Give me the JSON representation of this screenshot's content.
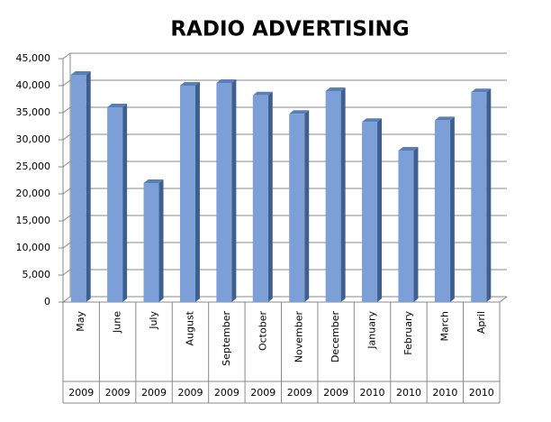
{
  "chart_data": {
    "type": "bar",
    "title": "RADIO ADVERTISING",
    "categories": [
      "May",
      "June",
      "July",
      "August",
      "September",
      "October",
      "November",
      "December",
      "January",
      "February",
      "March",
      "April"
    ],
    "category_groups": [
      "2009",
      "2009",
      "2009",
      "2009",
      "2009",
      "2009",
      "2009",
      "2009",
      "2010",
      "2010",
      "2010",
      "2010"
    ],
    "values": [
      42000,
      36000,
      22000,
      40000,
      40500,
      38200,
      34800,
      39000,
      33300,
      28000,
      33600,
      38800
    ],
    "color": "#7b9fd6",
    "ylim": [
      0,
      45000
    ],
    "yticks": [
      0,
      {
        "value": 5000,
        "label": "5,000"
      },
      {
        "value": 10000,
        "label": "10,000"
      },
      {
        "value": 15000,
        "label": "15,000"
      },
      {
        "value": 20000,
        "label": "20,000"
      },
      {
        "value": 25000,
        "label": "25,000"
      },
      {
        "value": 30000,
        "label": "30,000"
      },
      {
        "value": 35000,
        "label": "35,000"
      },
      {
        "value": 40000,
        "label": "40,000"
      },
      {
        "value": 45000,
        "label": "45,000"
      }
    ],
    "grid": true
  }
}
